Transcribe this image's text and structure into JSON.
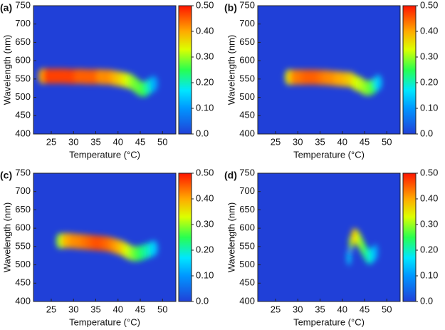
{
  "chart_data": [
    {
      "type": "heatmap",
      "label": "(a)",
      "xlabel": "Temperature (°C)",
      "ylabel": "Wavelength (nm)",
      "xlim": [
        21,
        53
      ],
      "xticks": [
        25,
        30,
        35,
        40,
        45,
        50
      ],
      "ylim": [
        400,
        750
      ],
      "yticks": [
        400,
        450,
        500,
        550,
        600,
        650,
        700,
        750
      ],
      "colorbar_lim": [
        0,
        0.5
      ],
      "colorbar_ticks": [
        {
          "value": 0,
          "label": "0.0"
        },
        {
          "value": 0.1,
          "label": "0.10"
        },
        {
          "value": 0.2,
          "label": "0.20"
        },
        {
          "value": 0.3,
          "label": "0.30"
        },
        {
          "value": 0.4,
          "label": "0.40"
        },
        {
          "value": 0.5,
          "label": "0.50"
        }
      ],
      "x": [
        23,
        24,
        25,
        26,
        27,
        28,
        29,
        30,
        31,
        32,
        33,
        34,
        35,
        36,
        37,
        38,
        39,
        40,
        41,
        42,
        43,
        44,
        45,
        46,
        47,
        48
      ],
      "y": [
        558,
        558,
        558,
        558,
        558,
        558,
        557,
        557,
        557,
        557,
        556,
        556,
        556,
        556,
        555,
        555,
        553,
        551,
        549,
        546,
        542,
        533,
        524,
        522,
        530,
        537
      ],
      "values": [
        0.4,
        0.47,
        0.47,
        0.47,
        0.47,
        0.47,
        0.47,
        0.47,
        0.45,
        0.45,
        0.45,
        0.45,
        0.45,
        0.42,
        0.42,
        0.42,
        0.4,
        0.38,
        0.36,
        0.33,
        0.3,
        0.28,
        0.27,
        0.25,
        0.2,
        0.12
      ]
    },
    {
      "type": "heatmap",
      "label": "(b)",
      "xlabel": "Temperature (°C)",
      "ylabel": "Wavelength (nm)",
      "xlim": [
        21,
        53
      ],
      "xticks": [
        25,
        30,
        35,
        40,
        45,
        50
      ],
      "ylim": [
        400,
        750
      ],
      "yticks": [
        400,
        450,
        500,
        550,
        600,
        650,
        700,
        750
      ],
      "colorbar_lim": [
        0,
        0.5
      ],
      "colorbar_ticks": [
        {
          "value": 0,
          "label": "0.0"
        },
        {
          "value": 0.1,
          "label": "0.10"
        },
        {
          "value": 0.2,
          "label": "0.20"
        },
        {
          "value": 0.3,
          "label": "0.30"
        },
        {
          "value": 0.4,
          "label": "0.40"
        },
        {
          "value": 0.5,
          "label": "0.50"
        }
      ],
      "x": [
        28,
        29,
        30,
        31,
        32,
        33,
        34,
        35,
        36,
        37,
        38,
        39,
        40,
        41,
        42,
        43,
        44,
        45,
        46,
        47,
        48
      ],
      "y": [
        555,
        555,
        555,
        555,
        555,
        555,
        555,
        554,
        554,
        553,
        552,
        551,
        550,
        549,
        548,
        540,
        535,
        527,
        525,
        530,
        540
      ],
      "values": [
        0.35,
        0.42,
        0.43,
        0.44,
        0.45,
        0.45,
        0.45,
        0.44,
        0.43,
        0.42,
        0.42,
        0.4,
        0.4,
        0.38,
        0.37,
        0.33,
        0.32,
        0.3,
        0.28,
        0.25,
        0.15
      ]
    },
    {
      "type": "heatmap",
      "label": "(c)",
      "xlabel": "Temperature (°C)",
      "ylabel": "Wavelength (nm)",
      "xlim": [
        21,
        53
      ],
      "xticks": [
        25,
        30,
        35,
        40,
        45,
        50
      ],
      "ylim": [
        400,
        750
      ],
      "yticks": [
        400,
        450,
        500,
        550,
        600,
        650,
        700,
        750
      ],
      "colorbar_lim": [
        0,
        0.5
      ],
      "colorbar_ticks": [
        {
          "value": 0,
          "label": "0.0"
        },
        {
          "value": 0.1,
          "label": "0.10"
        },
        {
          "value": 0.2,
          "label": "0.20"
        },
        {
          "value": 0.3,
          "label": "0.30"
        },
        {
          "value": 0.4,
          "label": "0.40"
        },
        {
          "value": 0.5,
          "label": "0.50"
        }
      ],
      "x": [
        27,
        28,
        29,
        30,
        31,
        32,
        33,
        34,
        35,
        36,
        37,
        38,
        39,
        40,
        41,
        42,
        43,
        44,
        45,
        46,
        47,
        48
      ],
      "y": [
        565,
        566,
        566,
        565,
        564,
        563,
        562,
        561,
        560,
        559,
        558,
        556,
        553,
        549,
        545,
        538,
        532,
        530,
        532,
        536,
        540,
        545
      ],
      "values": [
        0.3,
        0.38,
        0.4,
        0.42,
        0.42,
        0.43,
        0.44,
        0.45,
        0.46,
        0.46,
        0.45,
        0.44,
        0.42,
        0.4,
        0.37,
        0.33,
        0.3,
        0.27,
        0.25,
        0.22,
        0.2,
        0.15
      ]
    },
    {
      "type": "heatmap",
      "label": "(d)",
      "xlabel": "Temperature (°C)",
      "ylabel": "Wavelength (nm)",
      "xlim": [
        21,
        53
      ],
      "xticks": [
        25,
        30,
        35,
        40,
        45,
        50
      ],
      "ylim": [
        400,
        750
      ],
      "yticks": [
        400,
        450,
        500,
        550,
        600,
        650,
        700,
        750
      ],
      "colorbar_lim": [
        0,
        0.5
      ],
      "colorbar_ticks": [
        {
          "value": 0,
          "label": "0.0"
        },
        {
          "value": 0.1,
          "label": "0.10"
        },
        {
          "value": 0.2,
          "label": "0.20"
        },
        {
          "value": 0.3,
          "label": "0.30"
        },
        {
          "value": 0.4,
          "label": "0.40"
        },
        {
          "value": 0.5,
          "label": "0.50"
        }
      ],
      "x": [
        41.5,
        42,
        42.5,
        43,
        43.5,
        44,
        44.5,
        45,
        45.5,
        46,
        46.5,
        47,
        47.5
      ],
      "y": [
        520,
        560,
        578,
        578,
        572,
        562,
        550,
        538,
        528,
        522,
        524,
        530,
        535
      ],
      "values": [
        0.15,
        0.3,
        0.38,
        0.37,
        0.33,
        0.3,
        0.28,
        0.25,
        0.22,
        0.2,
        0.18,
        0.15,
        0.12
      ]
    }
  ]
}
